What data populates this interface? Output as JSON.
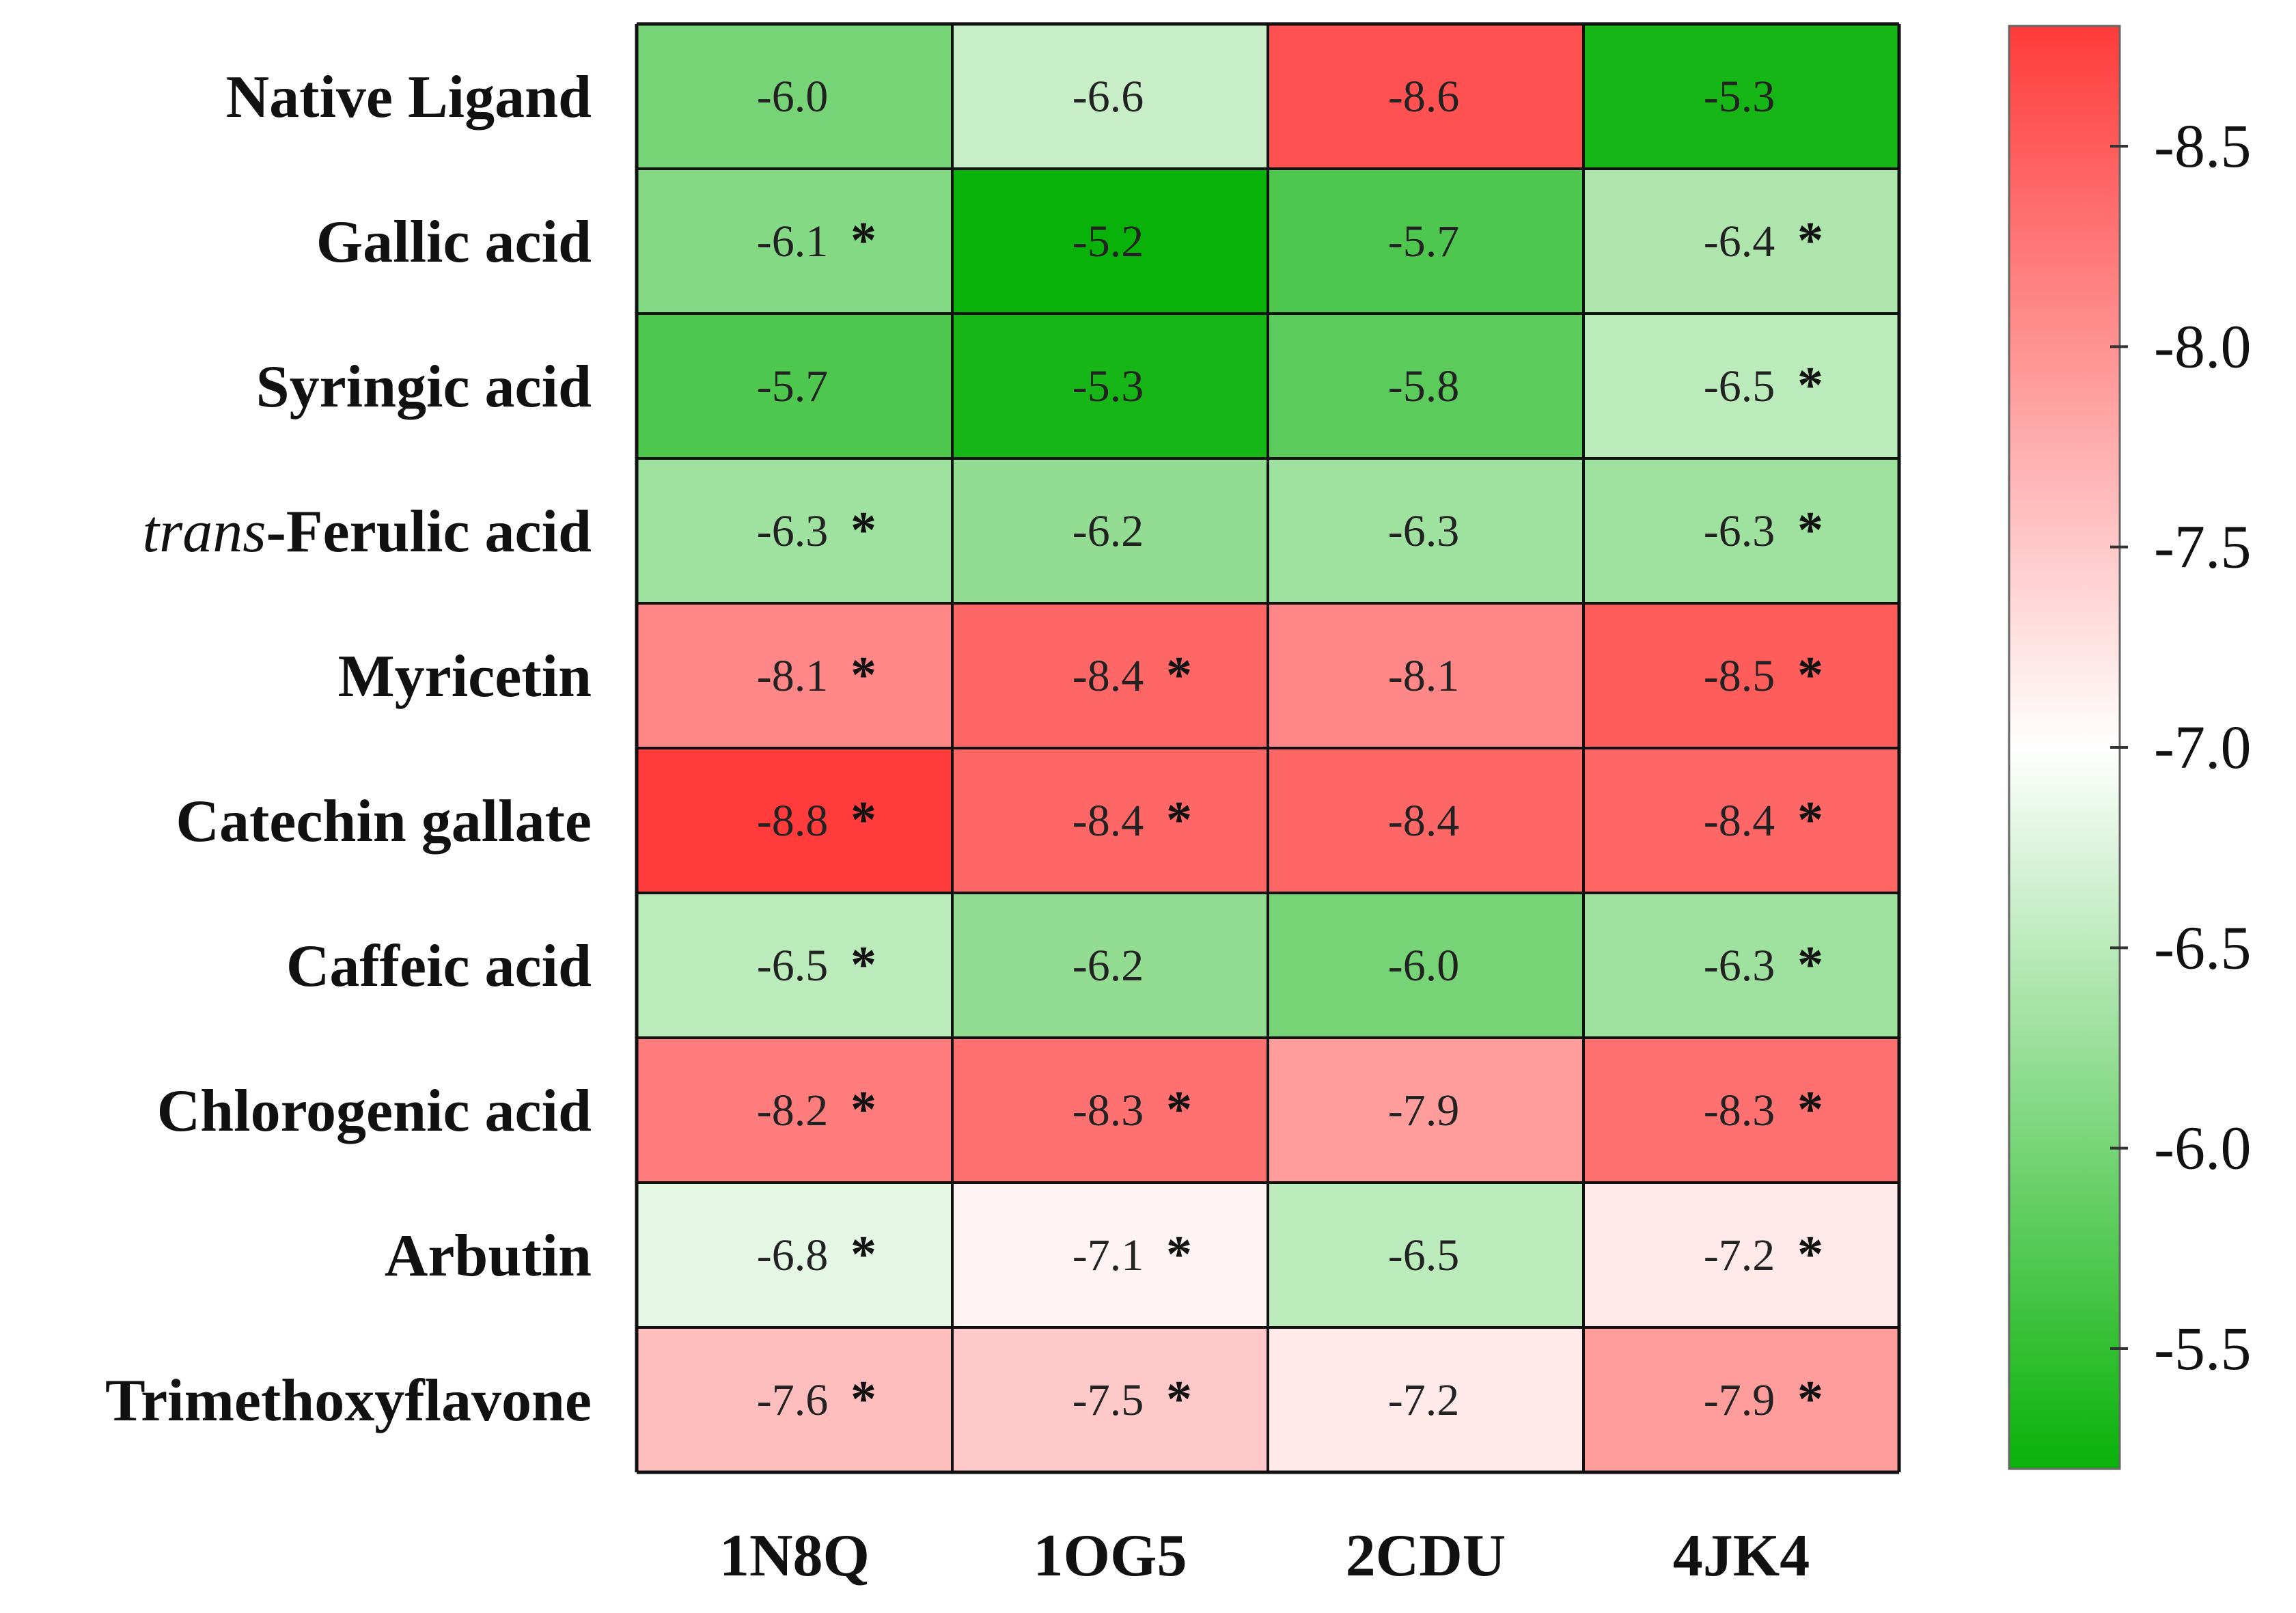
{
  "chart_data": {
    "type": "heatmap",
    "rows": [
      {
        "label": "Native Ligand"
      },
      {
        "label": "Gallic acid"
      },
      {
        "label": "Syringic acid"
      },
      {
        "label": "-Ferulic acid",
        "prefix_italic": "trans"
      },
      {
        "label": "Myricetin"
      },
      {
        "label": "Catechin gallate"
      },
      {
        "label": "Caffeic acid"
      },
      {
        "label": "Chlorogenic acid"
      },
      {
        "label": "Arbutin"
      },
      {
        "label": "Trimethoxyflavone"
      }
    ],
    "columns": [
      "1N8Q",
      "1OG5",
      "2CDU",
      "4JK4"
    ],
    "values": [
      [
        -6.0,
        -6.6,
        -8.6,
        -5.3
      ],
      [
        -6.1,
        -5.2,
        -5.7,
        -6.4
      ],
      [
        -5.7,
        -5.3,
        -5.8,
        -6.5
      ],
      [
        -6.3,
        -6.2,
        -6.3,
        -6.3
      ],
      [
        -8.1,
        -8.4,
        -8.1,
        -8.5
      ],
      [
        -8.8,
        -8.4,
        -8.4,
        -8.4
      ],
      [
        -6.5,
        -6.2,
        -6.0,
        -6.3
      ],
      [
        -8.2,
        -8.3,
        -7.9,
        -8.3
      ],
      [
        -6.8,
        -7.1,
        -6.5,
        -7.2
      ],
      [
        -7.6,
        -7.5,
        -7.2,
        -7.9
      ]
    ],
    "significant": [
      [
        false,
        false,
        false,
        false
      ],
      [
        true,
        false,
        false,
        true
      ],
      [
        false,
        false,
        false,
        true
      ],
      [
        true,
        false,
        false,
        true
      ],
      [
        true,
        true,
        false,
        true
      ],
      [
        true,
        true,
        false,
        true
      ],
      [
        true,
        false,
        false,
        true
      ],
      [
        true,
        true,
        false,
        true
      ],
      [
        true,
        true,
        false,
        true
      ],
      [
        true,
        true,
        false,
        true
      ]
    ],
    "significance_marker": "*",
    "colorbar": {
      "ticks": [
        -8.5,
        -8.0,
        -7.5,
        -7.0,
        -6.5,
        -6.0,
        -5.5
      ],
      "tick_labels": [
        "-8.5",
        "-8.0",
        "-7.5",
        "-7.0",
        "-6.5",
        "-6.0",
        "-5.5"
      ],
      "range": [
        -8.8,
        -5.2
      ],
      "colors": {
        "low": "#ff3b3b",
        "mid": "#ffffff",
        "high": "#09b209"
      },
      "mid_value": -7.0
    }
  }
}
